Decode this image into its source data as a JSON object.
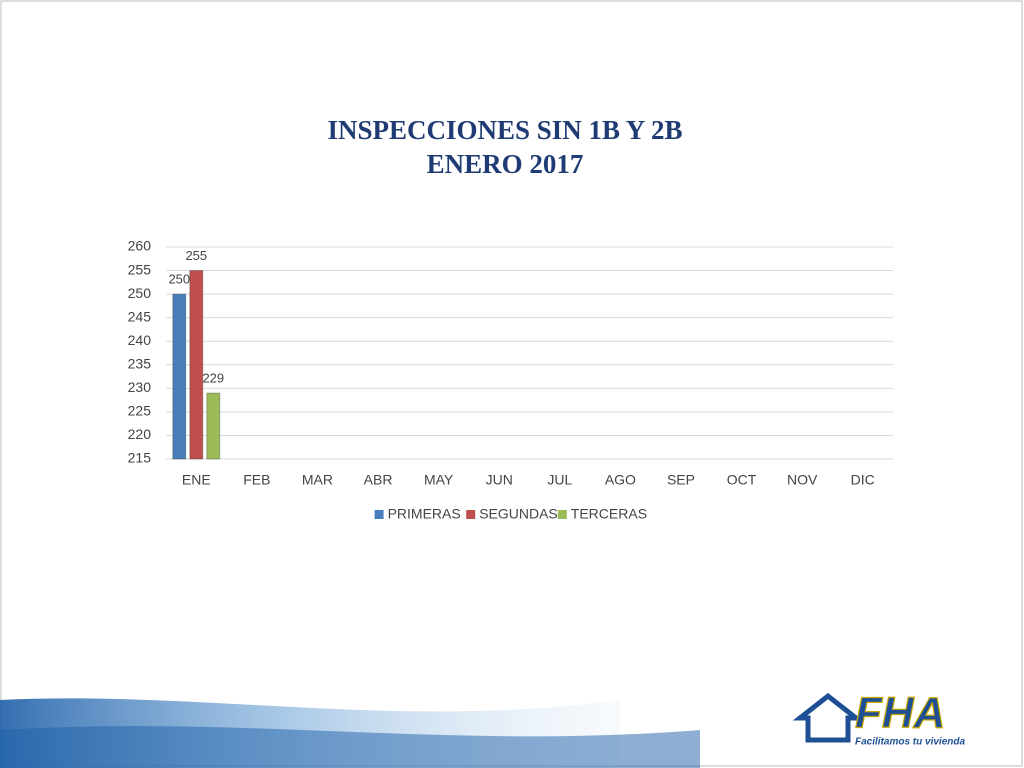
{
  "chart_data": {
    "type": "bar",
    "title": "INSPECCIONES SIN 1B Y 2B",
    "subtitle": "ENERO 2017",
    "categories": [
      "ENE",
      "FEB",
      "MAR",
      "ABR",
      "MAY",
      "JUN",
      "JUL",
      "AGO",
      "SEP",
      "OCT",
      "NOV",
      "DIC"
    ],
    "series": [
      {
        "name": "PRIMERAS",
        "color": "#4a7ebb",
        "values": [
          250,
          null,
          null,
          null,
          null,
          null,
          null,
          null,
          null,
          null,
          null,
          null
        ]
      },
      {
        "name": "SEGUNDAS",
        "color": "#c0504d",
        "values": [
          255,
          null,
          null,
          null,
          null,
          null,
          null,
          null,
          null,
          null,
          null,
          null
        ]
      },
      {
        "name": "TERCERAS",
        "color": "#9bbb59",
        "values": [
          229,
          null,
          null,
          null,
          null,
          null,
          null,
          null,
          null,
          null,
          null,
          null
        ]
      }
    ],
    "ylim": [
      215,
      260
    ],
    "yticks": [
      215,
      220,
      225,
      230,
      235,
      240,
      245,
      250,
      255,
      260
    ],
    "grid": true,
    "legend": "bottom"
  },
  "logo": {
    "text": "FHA",
    "tagline": "Facilitamos tu vivienda"
  }
}
